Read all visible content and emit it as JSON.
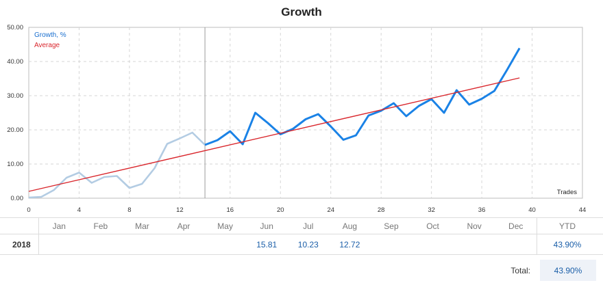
{
  "chart_data": {
    "type": "line",
    "title": "Growth",
    "xlabel": "Trades",
    "ylabel": "",
    "xlim": [
      0,
      44
    ],
    "ylim": [
      0,
      50
    ],
    "y_ticks": [
      "0.00",
      "10.00",
      "20.00",
      "30.00",
      "40.00",
      "50.00"
    ],
    "x_ticks": [
      "0",
      "4",
      "8",
      "12",
      "16",
      "20",
      "24",
      "28",
      "32",
      "36",
      "40",
      "44"
    ],
    "grid": true,
    "legend": "top-left",
    "marker_x": 14,
    "series": [
      {
        "name": "Growth, %",
        "color": "#1a82e6",
        "history_color": "#b3cce3",
        "history_until": 14,
        "x": [
          0,
          1,
          2,
          3,
          4,
          5,
          6,
          7,
          8,
          9,
          10,
          11,
          12,
          13,
          14,
          15,
          16,
          17,
          18,
          19,
          20,
          21,
          22,
          23,
          24,
          25,
          26,
          27,
          28,
          29,
          30,
          31,
          32,
          33,
          34,
          35,
          36,
          37,
          38,
          39
        ],
        "y": [
          0.2,
          0.4,
          2.4,
          6.0,
          7.5,
          4.5,
          6.2,
          6.5,
          3.0,
          4.2,
          8.8,
          15.9,
          17.5,
          19.2,
          15.6,
          17.0,
          19.6,
          15.8,
          25.0,
          22.0,
          18.7,
          20.3,
          23.1,
          24.6,
          21.0,
          17.1,
          18.4,
          24.2,
          25.6,
          27.8,
          24.0,
          27.0,
          29.0,
          25.0,
          31.6,
          27.4,
          29.1,
          31.4,
          37.5,
          43.9
        ]
      },
      {
        "name": "Average",
        "color": "#d9262c",
        "x": [
          0,
          39
        ],
        "y": [
          2.0,
          35.2
        ]
      }
    ]
  },
  "table": {
    "months": [
      "Jan",
      "Feb",
      "Mar",
      "Apr",
      "May",
      "Jun",
      "Jul",
      "Aug",
      "Sep",
      "Oct",
      "Nov",
      "Dec"
    ],
    "ytd_label": "YTD",
    "year": "2018",
    "values": [
      "",
      "",
      "",
      "",
      "",
      "15.81",
      "10.23",
      "12.72",
      "",
      "",
      "",
      ""
    ],
    "ytd": "43.90%",
    "total_label": "Total:",
    "total": "43.90%"
  }
}
